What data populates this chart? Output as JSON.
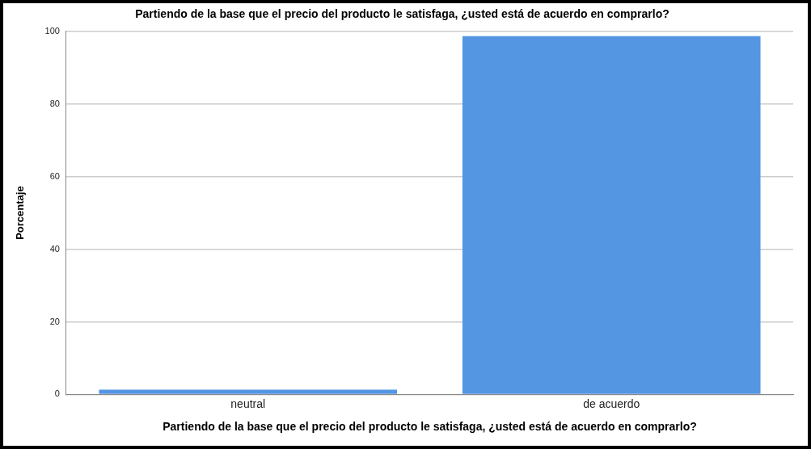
{
  "chart_data": {
    "type": "bar",
    "title": "Partiendo de la base que el precio del producto le satisfaga, ¿usted está de acuerdo en comprarlo?",
    "xlabel": "Partiendo de la base que el precio del producto le satisfaga, ¿usted está de acuerdo en comprarlo?",
    "ylabel": "Porcentaje",
    "categories": [
      "neutral",
      "de acuerdo"
    ],
    "values": [
      1.3,
      98.7
    ],
    "color": "#5596e3",
    "ylim": [
      0,
      100
    ],
    "yticks": [
      0,
      20,
      40,
      60,
      80,
      100
    ],
    "grid": "y",
    "legend": false
  }
}
